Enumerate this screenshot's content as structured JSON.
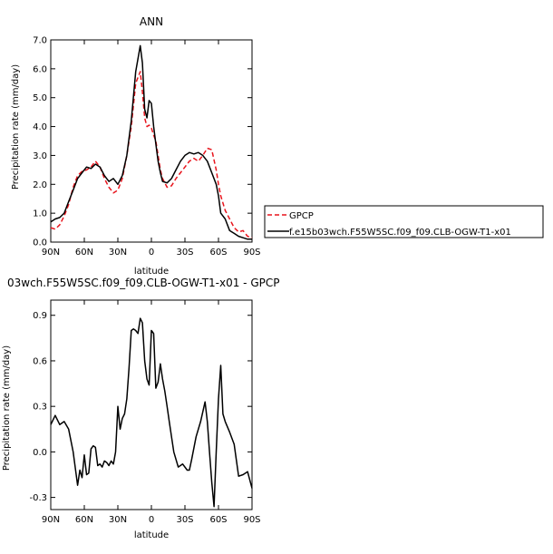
{
  "chart_data": [
    {
      "type": "line",
      "title": "ANN",
      "xlabel": "latitude",
      "ylabel": "Precipitation rate (mm/day)",
      "xlim": [
        90,
        -90
      ],
      "ylim": [
        0.0,
        7.0
      ],
      "x_ticks": [
        {
          "v": 90,
          "label": "90N"
        },
        {
          "v": 60,
          "label": "60N"
        },
        {
          "v": 30,
          "label": "30N"
        },
        {
          "v": 0,
          "label": "0"
        },
        {
          "v": -30,
          "label": "30S"
        },
        {
          "v": -60,
          "label": "60S"
        },
        {
          "v": -90,
          "label": "90S"
        }
      ],
      "y_ticks": [
        {
          "v": 0,
          "label": "0.0"
        },
        {
          "v": 1,
          "label": "1.0"
        },
        {
          "v": 2,
          "label": "2.0"
        },
        {
          "v": 3,
          "label": "3.0"
        },
        {
          "v": 4,
          "label": "4.0"
        },
        {
          "v": 5,
          "label": "5.0"
        },
        {
          "v": 6,
          "label": "6.0"
        },
        {
          "v": 7,
          "label": "7.0"
        }
      ],
      "legend_position": "right",
      "series": [
        {
          "name": "GPCP",
          "color": "#e8141c",
          "dash": "dashed",
          "x": [
            90,
            86,
            82,
            78,
            74,
            70,
            66,
            62,
            58,
            54,
            50,
            46,
            42,
            38,
            34,
            30,
            26,
            22,
            18,
            14,
            10,
            8,
            6,
            4,
            2,
            0,
            -2,
            -4,
            -6,
            -8,
            -10,
            -14,
            -18,
            -22,
            -26,
            -30,
            -34,
            -38,
            -42,
            -46,
            -50,
            -54,
            -58,
            -60,
            -62,
            -66,
            -70,
            -74,
            -78,
            -82,
            -86,
            -90
          ],
          "y": [
            0.5,
            0.45,
            0.6,
            0.9,
            1.3,
            1.9,
            2.3,
            2.45,
            2.5,
            2.6,
            2.8,
            2.6,
            2.2,
            1.9,
            1.7,
            1.8,
            2.2,
            3.0,
            4.0,
            5.5,
            5.9,
            5.2,
            4.3,
            4.0,
            4.05,
            3.95,
            3.7,
            3.5,
            3.0,
            2.5,
            2.2,
            1.9,
            1.95,
            2.2,
            2.4,
            2.6,
            2.8,
            2.9,
            2.8,
            3.0,
            3.25,
            3.2,
            2.5,
            2.0,
            1.6,
            1.1,
            0.8,
            0.5,
            0.35,
            0.4,
            0.2,
            0.15
          ]
        },
        {
          "name": "f.e15b03wch.F55W5SC.f09_f09.CLB-OGW-T1-x01",
          "color": "#000000",
          "dash": "solid",
          "x": [
            90,
            86,
            82,
            78,
            74,
            70,
            66,
            62,
            58,
            54,
            50,
            46,
            42,
            38,
            34,
            30,
            26,
            22,
            18,
            14,
            10,
            8,
            6,
            4,
            2,
            0,
            -2,
            -4,
            -6,
            -8,
            -10,
            -14,
            -18,
            -22,
            -26,
            -30,
            -34,
            -38,
            -42,
            -46,
            -50,
            -54,
            -58,
            -60,
            -62,
            -66,
            -70,
            -74,
            -78,
            -82,
            -86,
            -90
          ],
          "y": [
            0.7,
            0.8,
            0.85,
            1.0,
            1.4,
            1.8,
            2.2,
            2.4,
            2.6,
            2.55,
            2.7,
            2.6,
            2.3,
            2.1,
            2.2,
            2.0,
            2.3,
            3.0,
            4.2,
            5.9,
            6.8,
            6.2,
            4.6,
            4.3,
            4.9,
            4.8,
            4.0,
            3.4,
            2.8,
            2.4,
            2.1,
            2.05,
            2.2,
            2.5,
            2.8,
            3.0,
            3.1,
            3.05,
            3.1,
            3.0,
            2.8,
            2.4,
            2.0,
            1.6,
            1.0,
            0.8,
            0.4,
            0.3,
            0.2,
            0.15,
            0.1,
            0.1
          ]
        }
      ]
    },
    {
      "type": "line",
      "title": "03wch.F55W5SC.f09_f09.CLB-OGW-T1-x01 - GPCP",
      "xlabel": "latitude",
      "ylabel": "Precipitation rate (mm/day)",
      "xlim": [
        90,
        -90
      ],
      "ylim": [
        -0.38,
        1.0
      ],
      "x_ticks": [
        {
          "v": 90,
          "label": "90N"
        },
        {
          "v": 60,
          "label": "60N"
        },
        {
          "v": 30,
          "label": "30N"
        },
        {
          "v": 0,
          "label": "0"
        },
        {
          "v": -30,
          "label": "30S"
        },
        {
          "v": -60,
          "label": "60S"
        },
        {
          "v": -90,
          "label": "90S"
        }
      ],
      "y_ticks": [
        {
          "v": -0.3,
          "label": "-0.3"
        },
        {
          "v": 0.0,
          "label": "0.0"
        },
        {
          "v": 0.3,
          "label": "0.3"
        },
        {
          "v": 0.6,
          "label": "0.6"
        },
        {
          "v": 0.9,
          "label": "0.9"
        }
      ],
      "series": [
        {
          "color": "#000000",
          "dash": "solid",
          "x": [
            90,
            86,
            82,
            78,
            74,
            70,
            66,
            64,
            62,
            60,
            58,
            56,
            54,
            52,
            50,
            48,
            46,
            44,
            42,
            40,
            38,
            36,
            34,
            32,
            30,
            28,
            26,
            24,
            22,
            20,
            18,
            16,
            14,
            12,
            10,
            8,
            6,
            4,
            2,
            0,
            -2,
            -4,
            -6,
            -8,
            -10,
            -12,
            -14,
            -16,
            -18,
            -20,
            -24,
            -28,
            -32,
            -34,
            -36,
            -40,
            -44,
            -48,
            -50,
            -52,
            -54,
            -56,
            -58,
            -60,
            -62,
            -64,
            -66,
            -70,
            -74,
            -78,
            -82,
            -86,
            -90
          ],
          "y": [
            0.18,
            0.24,
            0.18,
            0.2,
            0.15,
            0.0,
            -0.22,
            -0.12,
            -0.17,
            -0.02,
            -0.15,
            -0.14,
            0.02,
            0.04,
            0.03,
            -0.09,
            -0.08,
            -0.1,
            -0.06,
            -0.07,
            -0.09,
            -0.06,
            -0.08,
            0.0,
            0.3,
            0.15,
            0.22,
            0.25,
            0.35,
            0.55,
            0.8,
            0.81,
            0.8,
            0.78,
            0.88,
            0.85,
            0.6,
            0.48,
            0.44,
            0.8,
            0.78,
            0.42,
            0.46,
            0.58,
            0.48,
            0.4,
            0.3,
            0.2,
            0.1,
            0.0,
            -0.1,
            -0.08,
            -0.12,
            -0.12,
            -0.05,
            0.1,
            0.2,
            0.33,
            0.2,
            0.0,
            -0.2,
            -0.36,
            0.0,
            0.35,
            0.57,
            0.25,
            0.2,
            0.13,
            0.05,
            -0.16,
            -0.15,
            -0.13,
            -0.24
          ]
        }
      ]
    }
  ]
}
